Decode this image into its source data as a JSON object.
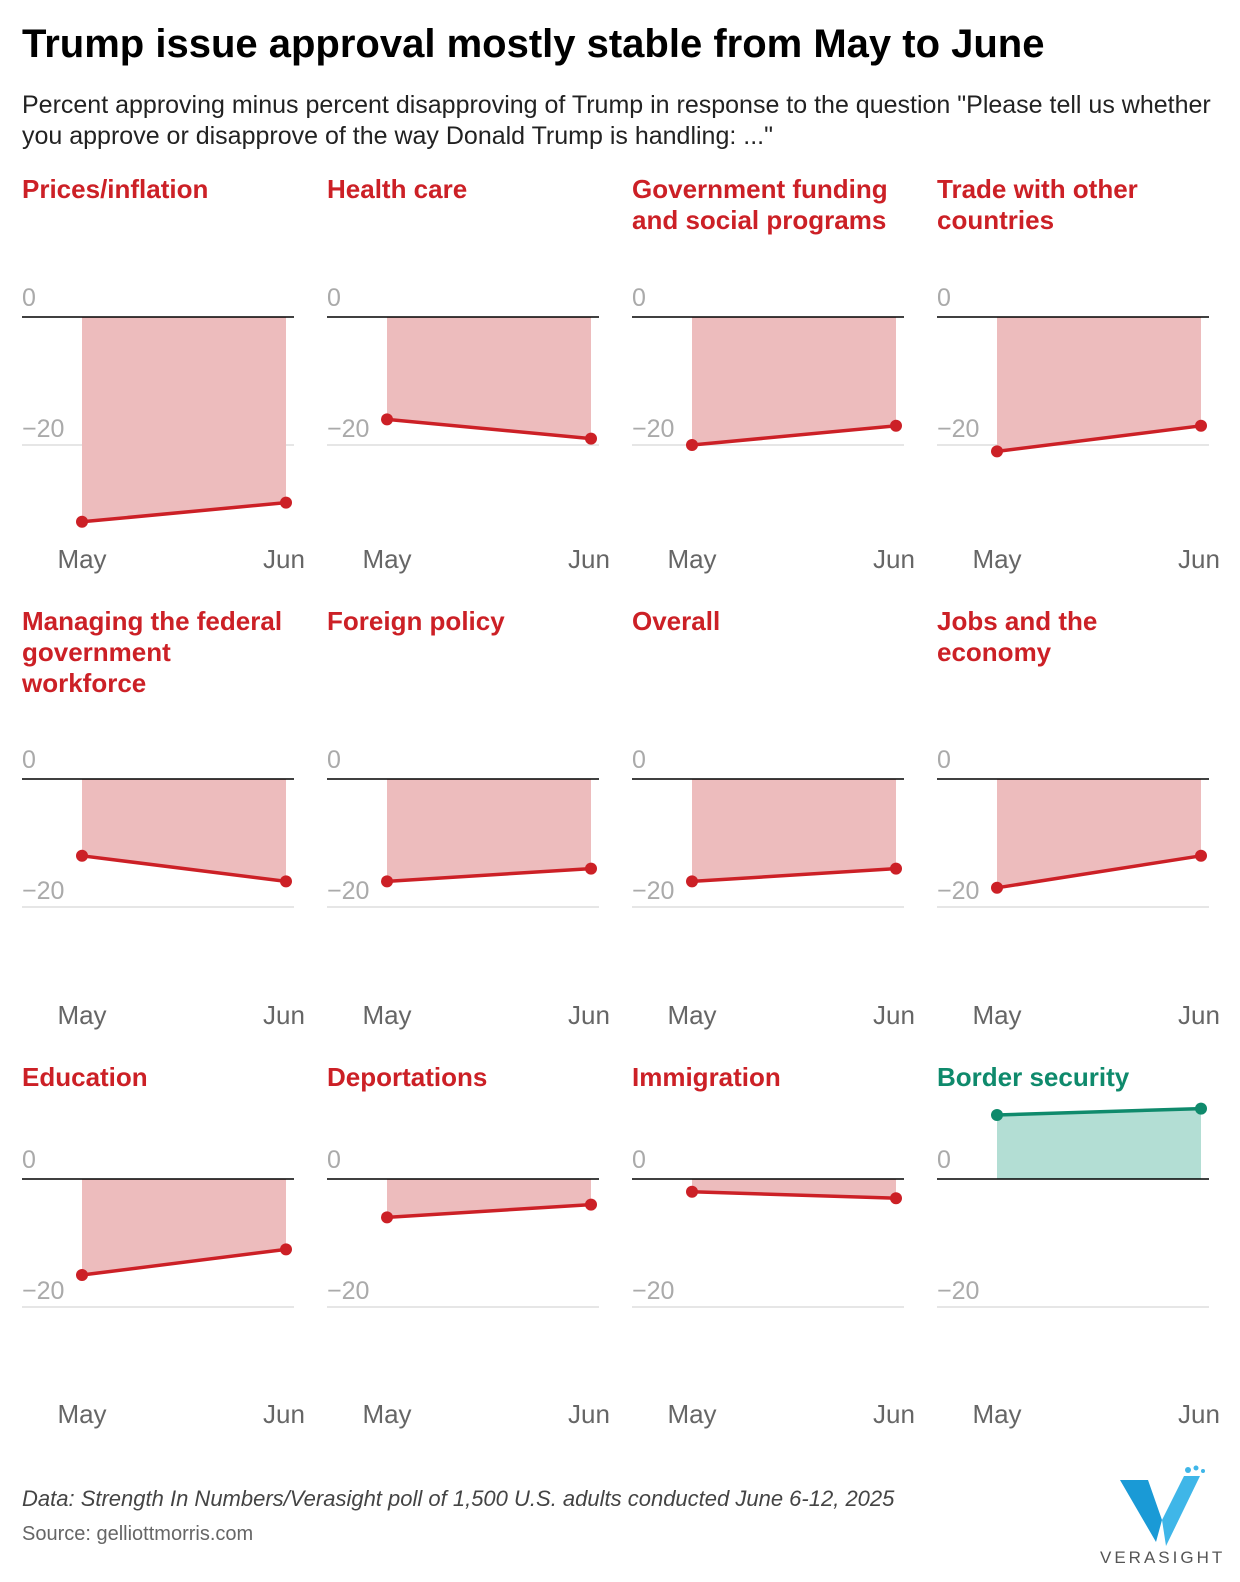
{
  "header": {
    "title": "Trump issue approval mostly stable from May to June",
    "subtitle": "Percent approving minus percent disapproving of Trump in response to the question \"Please tell us whether you approve or disapprove of the way Donald Trump is handling: ...\""
  },
  "footer": {
    "note": "Data: Strength In Numbers/Verasight poll of 1,500 U.S. adults conducted June 6-12, 2025",
    "source": "Source: gelliottmorris.com",
    "logo_text": "VERASIGHT"
  },
  "colors": {
    "negative_line": "#cc2026",
    "negative_fill": "#edbcbd",
    "positive_line": "#0f8a6c",
    "positive_fill": "#b3ded4",
    "zero_line": "#000000",
    "gridline": "#dddddd"
  },
  "chart_data": {
    "type": "area",
    "layout": "small-multiples",
    "x": [
      "May",
      "Jun"
    ],
    "y_ticks": [
      "0",
      "−20"
    ],
    "y_tick_values": [
      0,
      -20
    ],
    "ylim": [
      -35,
      15
    ],
    "series": [
      {
        "name": "Prices/inflation",
        "lines": [
          "Prices/inflation"
        ],
        "values": [
          -32,
          -29
        ]
      },
      {
        "name": "Health care",
        "lines": [
          "Health care"
        ],
        "values": [
          -16,
          -19
        ]
      },
      {
        "name": "Government funding and social programs",
        "lines": [
          "Government funding",
          "and social programs"
        ],
        "values": [
          -20,
          -17
        ]
      },
      {
        "name": "Trade with other countries",
        "lines": [
          "Trade with other",
          "countries"
        ],
        "values": [
          -21,
          -17
        ]
      },
      {
        "name": "Managing the federal government workforce",
        "lines": [
          "Managing the federal",
          "government",
          "workforce"
        ],
        "values": [
          -12,
          -16
        ]
      },
      {
        "name": "Foreign policy",
        "lines": [
          "Foreign policy"
        ],
        "values": [
          -16,
          -14
        ]
      },
      {
        "name": "Overall",
        "lines": [
          "Overall"
        ],
        "values": [
          -16,
          -14
        ]
      },
      {
        "name": "Jobs and the economy",
        "lines": [
          "Jobs and the",
          "economy"
        ],
        "values": [
          -17,
          -12
        ]
      },
      {
        "name": "Education",
        "lines": [
          "Education"
        ],
        "values": [
          -15,
          -11
        ]
      },
      {
        "name": "Deportations",
        "lines": [
          "Deportations"
        ],
        "values": [
          -6,
          -4
        ]
      },
      {
        "name": "Immigration",
        "lines": [
          "Immigration"
        ],
        "values": [
          -2,
          -3
        ]
      },
      {
        "name": "Border security",
        "lines": [
          "Border security"
        ],
        "values": [
          10,
          11
        ]
      }
    ]
  }
}
